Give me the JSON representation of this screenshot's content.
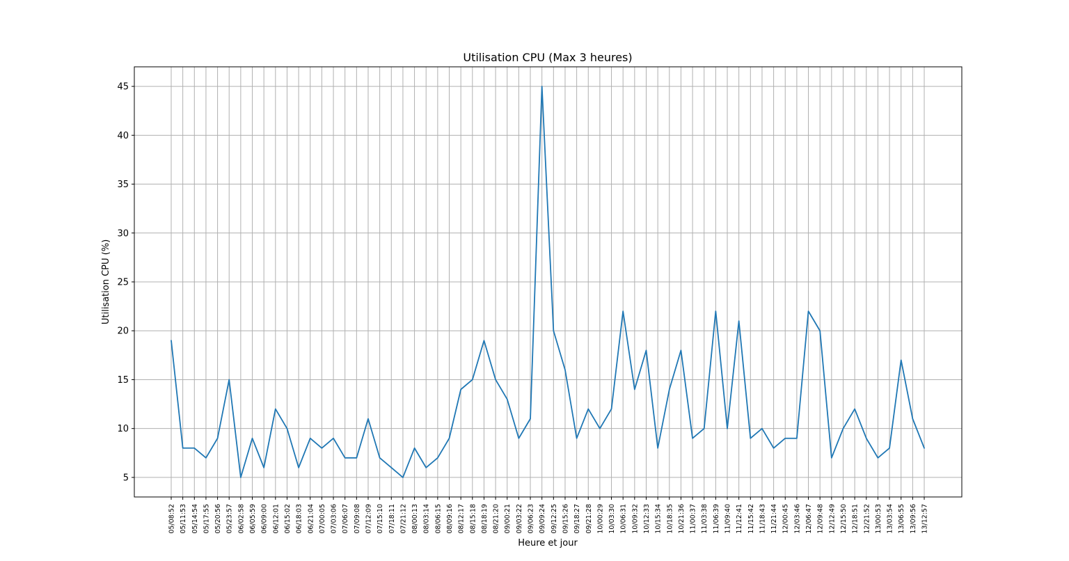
{
  "chart_data": {
    "type": "line",
    "title": "Utilisation CPU (Max 3 heures)",
    "xlabel": "Heure et jour",
    "ylabel": "Utilisation CPU (%)",
    "ylim": [
      3,
      47
    ],
    "yticks": [
      5,
      10,
      15,
      20,
      25,
      30,
      35,
      40,
      45
    ],
    "grid": true,
    "line_color": "#1f77b4",
    "grid_color": "#b0b0b0",
    "categories": [
      "05/08:52",
      "05/11:53",
      "05/14:54",
      "05/17:55",
      "05/20:56",
      "05/23:57",
      "06/02:58",
      "06/05:59",
      "06/09:00",
      "06/12:01",
      "06/15:02",
      "06/18:03",
      "06/21:04",
      "07/00:05",
      "07/03:06",
      "07/06:07",
      "07/09:08",
      "07/12:09",
      "07/15:10",
      "07/18:11",
      "07/21:12",
      "08/00:13",
      "08/03:14",
      "08/06:15",
      "08/09:16",
      "08/12:17",
      "08/15:18",
      "08/18:19",
      "08/21:20",
      "09/00:21",
      "09/03:22",
      "09/06:23",
      "09/09:24",
      "09/12:25",
      "09/15:26",
      "09/18:27",
      "09/21:28",
      "10/00:29",
      "10/03:30",
      "10/06:31",
      "10/09:32",
      "10/12:33",
      "10/15:34",
      "10/18:35",
      "10/21:36",
      "11/00:37",
      "11/03:38",
      "11/06:39",
      "11/09:40",
      "11/12:41",
      "11/15:42",
      "11/18:43",
      "11/21:44",
      "12/00:45",
      "12/03:46",
      "12/06:47",
      "12/09:48",
      "12/12:49",
      "12/15:50",
      "12/18:51",
      "12/21:52",
      "13/00:53",
      "13/03:54",
      "13/06:55",
      "13/09:56",
      "13/12:57"
    ],
    "series": [
      {
        "values": [
          19,
          8,
          8,
          7,
          9,
          15,
          5,
          9,
          6,
          12,
          10,
          6,
          9,
          8,
          9,
          7,
          7,
          11,
          7,
          6,
          5,
          8,
          6,
          7,
          9,
          14,
          15,
          19,
          15,
          13,
          9,
          11,
          45,
          20,
          16,
          9,
          12,
          10,
          12,
          22,
          14,
          18,
          8,
          14,
          18,
          9,
          10,
          22,
          10,
          21,
          9,
          10,
          8,
          9,
          9,
          22,
          20,
          7,
          10,
          12,
          9,
          7,
          8,
          17,
          11,
          8
        ]
      }
    ]
  }
}
